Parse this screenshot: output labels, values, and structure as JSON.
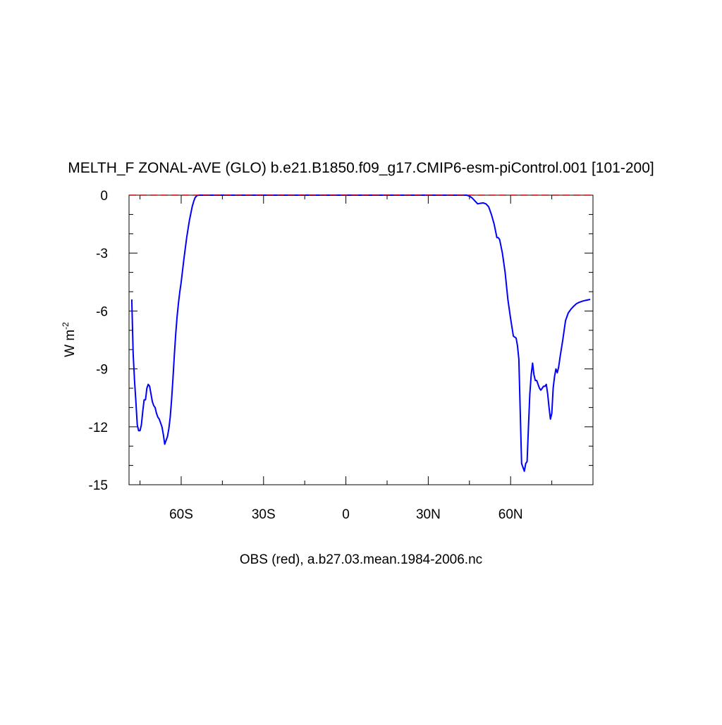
{
  "chart_data": {
    "type": "line",
    "title": "MELTH_F ZONAL-AVE (GLO) b.e21.B1850.f09_g17.CMIP6-esm-piControl.001 [101-200]",
    "ylabel_base": "W m",
    "ylabel_exp": "-2",
    "xlabel": "OBS (red), a.b27.03.mean.1984-2006.nc",
    "xlim": [
      -79,
      90
    ],
    "ylim": [
      -15,
      0
    ],
    "x_ticks": [
      {
        "value": -60,
        "label": "60S"
      },
      {
        "value": -30,
        "label": "30S"
      },
      {
        "value": 0,
        "label": "0"
      },
      {
        "value": 30,
        "label": "30N"
      },
      {
        "value": 60,
        "label": "60N"
      }
    ],
    "y_ticks": [
      {
        "value": 0,
        "label": "0"
      },
      {
        "value": -3,
        "label": "-3"
      },
      {
        "value": -6,
        "label": "-6"
      },
      {
        "value": -9,
        "label": "-9"
      },
      {
        "value": -12,
        "label": "-12"
      },
      {
        "value": -15,
        "label": "-15"
      }
    ],
    "series": [
      {
        "color": "#0000ff",
        "style": "solid",
        "x": [
          -78,
          -77.5,
          -77,
          -76.5,
          -76,
          -75.5,
          -75,
          -74.5,
          -74,
          -73.5,
          -73,
          -72.5,
          -72,
          -71.5,
          -71,
          -70.5,
          -70,
          -69.5,
          -69,
          -68.5,
          -68,
          -67.5,
          -67,
          -66.5,
          -66,
          -65.5,
          -65,
          -64.5,
          -64,
          -63.5,
          -63,
          -62.5,
          -62,
          -61.5,
          -61,
          -60.5,
          -60,
          -59,
          -58,
          -57,
          -56,
          -55.5,
          -55,
          -54.5,
          -54,
          -53.5,
          -53,
          -52,
          -50,
          -45,
          -30,
          0,
          30,
          44,
          45,
          46,
          47,
          48,
          49,
          50,
          51,
          52,
          53,
          54,
          55,
          55.5,
          56,
          57,
          58,
          59,
          60,
          61,
          62,
          62.5,
          63,
          63.5,
          64,
          64.5,
          65,
          65.5,
          66,
          66.5,
          67,
          67.5,
          68,
          68.5,
          69,
          69.5,
          70,
          70.5,
          71,
          71.5,
          72,
          72.5,
          73,
          73.5,
          74,
          74.5,
          75,
          75.5,
          76,
          76.5,
          77,
          77.5,
          78,
          79,
          80,
          81,
          82,
          83,
          84,
          85,
          86,
          87,
          88,
          89
        ],
        "y": [
          -5.4,
          -8.2,
          -9.6,
          -10.7,
          -11.9,
          -12.2,
          -12.2,
          -11.9,
          -11.2,
          -10.6,
          -10.6,
          -10.0,
          -9.8,
          -9.9,
          -10.3,
          -10.7,
          -10.9,
          -11.0,
          -11.3,
          -11.5,
          -11.6,
          -11.8,
          -12.0,
          -12.4,
          -12.9,
          -12.7,
          -12.5,
          -12.1,
          -11.5,
          -10.6,
          -9.5,
          -8.3,
          -7.2,
          -6.3,
          -5.6,
          -5.0,
          -4.5,
          -3.3,
          -2.2,
          -1.3,
          -0.6,
          -0.35,
          -0.15,
          -0.05,
          -0.01,
          0,
          0,
          0,
          0,
          0,
          0,
          0,
          0,
          0,
          -0.05,
          -0.15,
          -0.3,
          -0.45,
          -0.42,
          -0.4,
          -0.45,
          -0.6,
          -1.0,
          -1.5,
          -2.2,
          -2.2,
          -2.3,
          -3.0,
          -4.0,
          -5.4,
          -6.4,
          -7.3,
          -7.4,
          -7.8,
          -8.5,
          -11.2,
          -13.9,
          -14.1,
          -14.3,
          -13.9,
          -13.8,
          -12.0,
          -10.3,
          -9.3,
          -8.7,
          -9.3,
          -9.6,
          -9.6,
          -9.8,
          -10.0,
          -10.1,
          -10.0,
          -9.9,
          -9.9,
          -9.8,
          -10.3,
          -11.0,
          -11.6,
          -11.3,
          -10.0,
          -9.4,
          -9.0,
          -9.2,
          -8.9,
          -8.4,
          -7.5,
          -6.5,
          -6.1,
          -5.9,
          -5.75,
          -5.62,
          -5.55,
          -5.5,
          -5.46,
          -5.43,
          -5.4
        ]
      },
      {
        "color": "#cc0000",
        "style": "dashed",
        "x": [
          -79,
          90
        ],
        "y": [
          0,
          0
        ]
      }
    ]
  }
}
